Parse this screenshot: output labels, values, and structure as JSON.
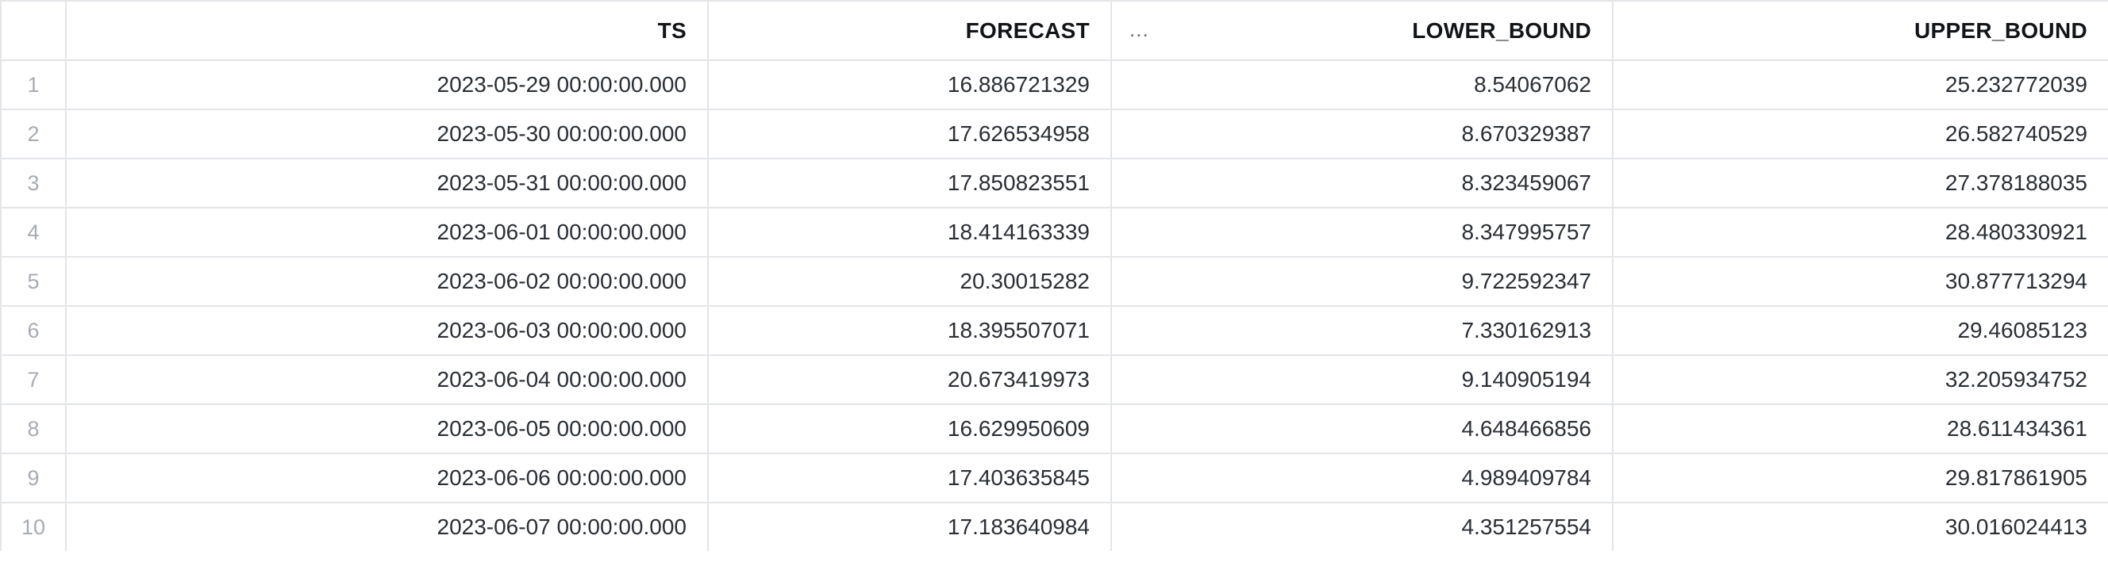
{
  "table": {
    "columns": [
      "TS",
      "FORECAST",
      "LOWER_BOUND",
      "UPPER_BOUND"
    ],
    "more_icon": "...",
    "rows": [
      {
        "index": "1",
        "ts": "2023-05-29 00:00:00.000",
        "forecast": "16.886721329",
        "lower_bound": "8.54067062",
        "upper_bound": "25.232772039"
      },
      {
        "index": "2",
        "ts": "2023-05-30 00:00:00.000",
        "forecast": "17.626534958",
        "lower_bound": "8.670329387",
        "upper_bound": "26.582740529"
      },
      {
        "index": "3",
        "ts": "2023-05-31 00:00:00.000",
        "forecast": "17.850823551",
        "lower_bound": "8.323459067",
        "upper_bound": "27.378188035"
      },
      {
        "index": "4",
        "ts": "2023-06-01 00:00:00.000",
        "forecast": "18.414163339",
        "lower_bound": "8.347995757",
        "upper_bound": "28.480330921"
      },
      {
        "index": "5",
        "ts": "2023-06-02 00:00:00.000",
        "forecast": "20.30015282",
        "lower_bound": "9.722592347",
        "upper_bound": "30.877713294"
      },
      {
        "index": "6",
        "ts": "2023-06-03 00:00:00.000",
        "forecast": "18.395507071",
        "lower_bound": "7.330162913",
        "upper_bound": "29.46085123"
      },
      {
        "index": "7",
        "ts": "2023-06-04 00:00:00.000",
        "forecast": "20.673419973",
        "lower_bound": "9.140905194",
        "upper_bound": "32.205934752"
      },
      {
        "index": "8",
        "ts": "2023-06-05 00:00:00.000",
        "forecast": "16.629950609",
        "lower_bound": "4.648466856",
        "upper_bound": "28.611434361"
      },
      {
        "index": "9",
        "ts": "2023-06-06 00:00:00.000",
        "forecast": "17.403635845",
        "lower_bound": "4.989409784",
        "upper_bound": "29.817861905"
      },
      {
        "index": "10",
        "ts": "2023-06-07 00:00:00.000",
        "forecast": "17.183640984",
        "lower_bound": "4.351257554",
        "upper_bound": "30.016024413"
      }
    ]
  }
}
